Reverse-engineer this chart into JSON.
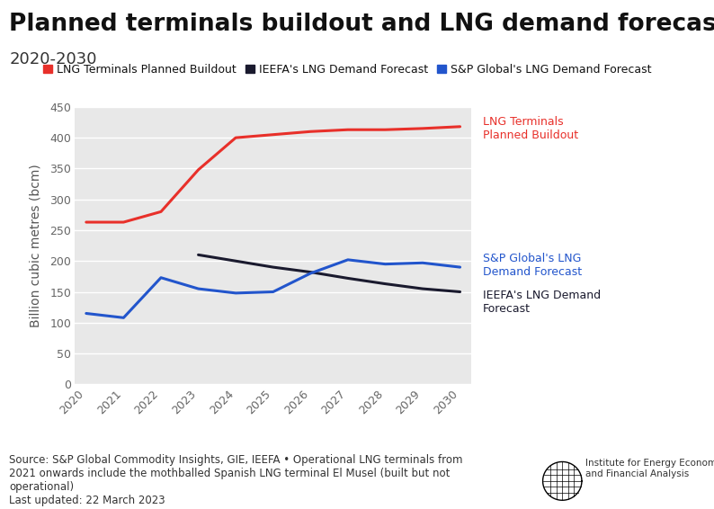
{
  "title": "Planned terminals buildout and LNG demand forecast",
  "subtitle": "2020-2030",
  "years": [
    2020,
    2021,
    2022,
    2023,
    2024,
    2025,
    2026,
    2027,
    2028,
    2029,
    2030
  ],
  "lng_buildout": [
    263,
    263,
    280,
    348,
    400,
    405,
    410,
    413,
    413,
    415,
    418
  ],
  "ieefa_demand": [
    null,
    null,
    null,
    210,
    200,
    190,
    182,
    172,
    163,
    155,
    150
  ],
  "sp_demand": [
    115,
    108,
    173,
    155,
    148,
    150,
    180,
    202,
    195,
    197,
    190
  ],
  "buildout_color": "#e8302a",
  "ieefa_color": "#1a1a2e",
  "sp_color": "#2255cc",
  "ylabel": "Billion cubic metres (bcm)",
  "ylim": [
    0,
    450
  ],
  "yticks": [
    0,
    50,
    100,
    150,
    200,
    250,
    300,
    350,
    400,
    450
  ],
  "fig_bg_color": "#ffffff",
  "plot_bg_color": "#e8e8e8",
  "legend_labels": [
    "LNG Terminals Planned Buildout",
    "IEEFA's LNG Demand Forecast",
    "S&P Global's LNG Demand Forecast"
  ],
  "annotation_buildout": "LNG Terminals\nPlanned Buildout",
  "annotation_sp": "S&P Global's LNG\nDemand Forecast",
  "annotation_ieefa": "IEEFA's LNG Demand\nForecast",
  "source_text": "Source: S&P Global Commodity Insights, GIE, IEEFA • Operational LNG terminals from\n2021 onwards include the mothballed Spanish LNG terminal El Musel (built but not\noperational)\nLast updated: 22 March 2023",
  "title_fontsize": 19,
  "subtitle_fontsize": 13,
  "ylabel_fontsize": 10,
  "tick_fontsize": 9,
  "legend_fontsize": 9,
  "annotation_fontsize": 9,
  "source_fontsize": 8.5
}
